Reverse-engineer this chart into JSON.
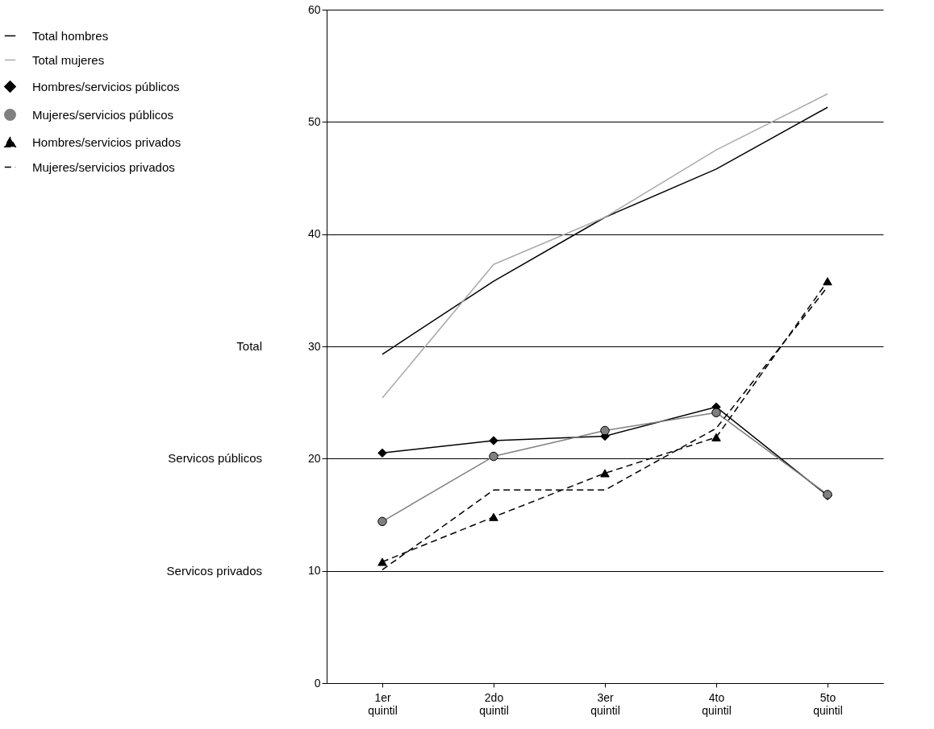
{
  "chart_data": {
    "type": "line",
    "categories": [
      "1er quintil",
      "2do quintil",
      "3er quintil",
      "4to quintil",
      "5to quintil"
    ],
    "ylim": [
      0,
      60
    ],
    "yticks": [
      0,
      10,
      20,
      30,
      40,
      50,
      60
    ],
    "grid": "y",
    "legend": "top left",
    "annotations": [
      "Total",
      "Servicos públicos",
      "Servicos privados"
    ],
    "series": [
      {
        "name": "Total hombres",
        "color": "#000000",
        "marker": "none",
        "line_style": "solid",
        "values": [
          29.3,
          35.8,
          41.5,
          45.8,
          51.3
        ]
      },
      {
        "name": "Total mujeres",
        "color": "#aaaaaa",
        "marker": "none",
        "line_style": "solid",
        "values": [
          25.4,
          37.3,
          41.5,
          47.5,
          52.5
        ]
      },
      {
        "name": "Hombres/servicios públicos",
        "color": "#000000",
        "marker": "diamond",
        "line_style": "solid",
        "values": [
          20.5,
          21.6,
          22.0,
          24.6,
          16.7
        ]
      },
      {
        "name": "Mujeres/servicios públicos",
        "color": "#808080",
        "marker": "circle",
        "line_style": "solid",
        "values": [
          14.4,
          20.2,
          22.5,
          24.1,
          16.8
        ]
      },
      {
        "name": "Hombres/servicios privados",
        "color": "#000000",
        "marker": "triangle",
        "line_style": "dashed",
        "values": [
          10.8,
          14.8,
          18.7,
          21.9,
          35.8
        ]
      },
      {
        "name": "Mujeres/servicios privados",
        "color": "#000000",
        "marker": "none",
        "line_style": "dashed",
        "values": [
          10.1,
          17.2,
          17.2,
          22.7,
          35.3
        ]
      }
    ]
  }
}
